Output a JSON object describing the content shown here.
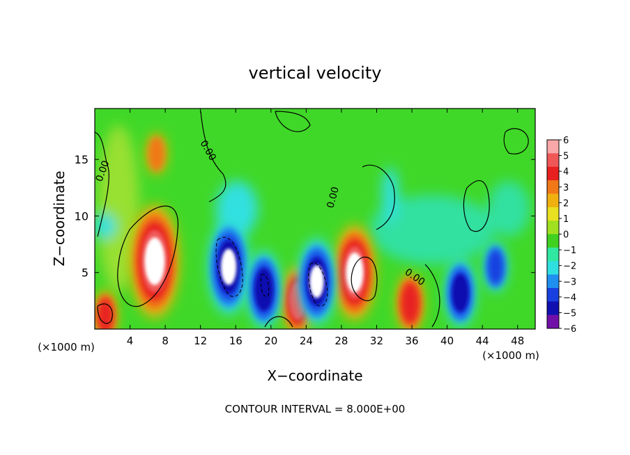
{
  "chart_data": {
    "type": "heatmap",
    "title": "vertical velocity",
    "xlabel": "X−coordinate",
    "ylabel": "Z−coordinate",
    "x_unit_label": "(×1000 m)",
    "z_unit_label": "(×1000 m)",
    "footer": "CONTOUR INTERVAL = 8.000E+00",
    "xlim": [
      0,
      50
    ],
    "ylim": [
      0,
      19.5
    ],
    "x_ticks": [
      4,
      8,
      12,
      16,
      20,
      24,
      28,
      32,
      36,
      40,
      44,
      48
    ],
    "y_ticks": [
      5,
      10,
      15
    ],
    "contour_labels": [
      "0.00",
      "0.00",
      "0.00",
      "0.00",
      "0.00"
    ],
    "colorbar": {
      "range": [
        -6,
        6
      ],
      "ticks": [
        "6",
        "5",
        "4",
        "3",
        "2",
        "1",
        "0",
        "−1",
        "−2",
        "−3",
        "−4",
        "−5",
        "−6"
      ],
      "colors": [
        "#f8a8a8",
        "#f05858",
        "#e82020",
        "#f07818",
        "#f0b010",
        "#e8e020",
        "#a0e020",
        "#40d020",
        "#30e8a0",
        "#30e0e0",
        "#2090f0",
        "#1840e0",
        "#1010b0",
        "#7010a8"
      ]
    },
    "features": [
      {
        "kind": "updraft",
        "x": 6.8,
        "z": 6.0,
        "w": 11
      },
      {
        "kind": "updraft",
        "x": 1.2,
        "z": 1.2,
        "w": 4
      },
      {
        "kind": "updraft",
        "x": 23.0,
        "z": 2.5,
        "w": 6
      },
      {
        "kind": "updraft",
        "x": 29.5,
        "z": 5.0,
        "w": 9
      },
      {
        "kind": "updraft",
        "x": 35.8,
        "z": 2.3,
        "w": 5
      },
      {
        "kind": "updraft",
        "x": 7.0,
        "z": 15.5,
        "w": 3
      },
      {
        "kind": "downdraft",
        "x": 15.2,
        "z": 5.5,
        "w": -9
      },
      {
        "kind": "downdraft",
        "x": 19.2,
        "z": 3.5,
        "w": -7
      },
      {
        "kind": "downdraft",
        "x": 25.2,
        "z": 4.2,
        "w": -8
      },
      {
        "kind": "downdraft",
        "x": 41.5,
        "z": 3.2,
        "w": -6
      },
      {
        "kind": "downdraft",
        "x": 45.5,
        "z": 5.5,
        "w": -4
      }
    ]
  }
}
